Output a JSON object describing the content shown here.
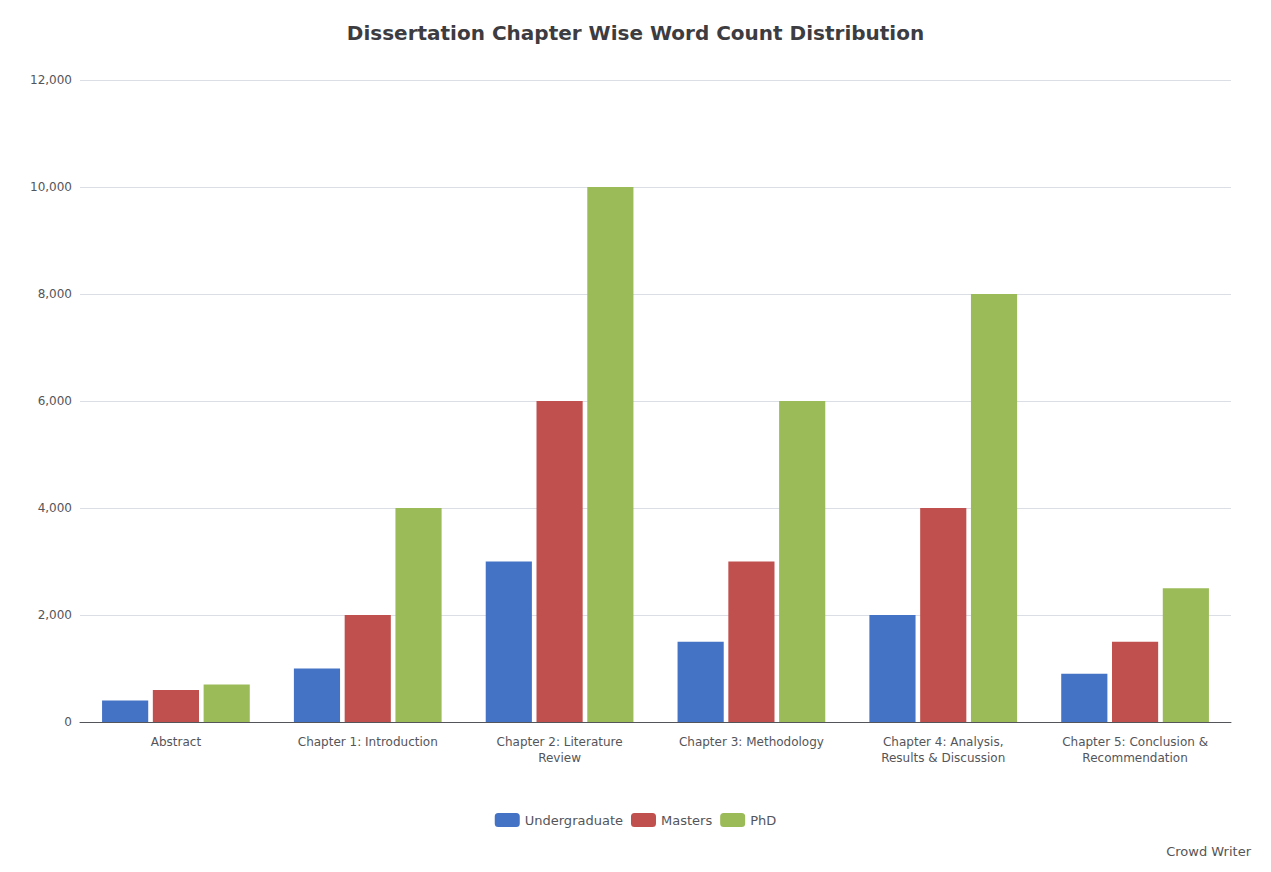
{
  "chart_data": {
    "type": "bar",
    "title": "Dissertation Chapter Wise Word Count Distribution",
    "categories": [
      "Abstract",
      "Chapter 1: Introduction",
      "Chapter 2: Literature\nReview",
      "Chapter 3: Methodology",
      "Chapter 4: Analysis,\nResults & Discussion",
      "Chapter 5: Conclusion &\nRecommendation"
    ],
    "series": [
      {
        "name": "Undergraduate",
        "color": "#4472c4",
        "values": [
          400,
          1000,
          3000,
          1500,
          2000,
          900
        ]
      },
      {
        "name": "Masters",
        "color": "#c0504d",
        "values": [
          600,
          2000,
          6000,
          3000,
          4000,
          1500
        ]
      },
      {
        "name": "PhD",
        "color": "#9bbb59",
        "values": [
          700,
          4000,
          10000,
          6000,
          8000,
          2500
        ]
      }
    ],
    "ylim": [
      0,
      12000
    ],
    "yticks": [
      0,
      2000,
      4000,
      6000,
      8000,
      10000,
      12000
    ],
    "grid": true,
    "legend": "bottom",
    "annotations": [
      "Crowd Writer"
    ]
  }
}
